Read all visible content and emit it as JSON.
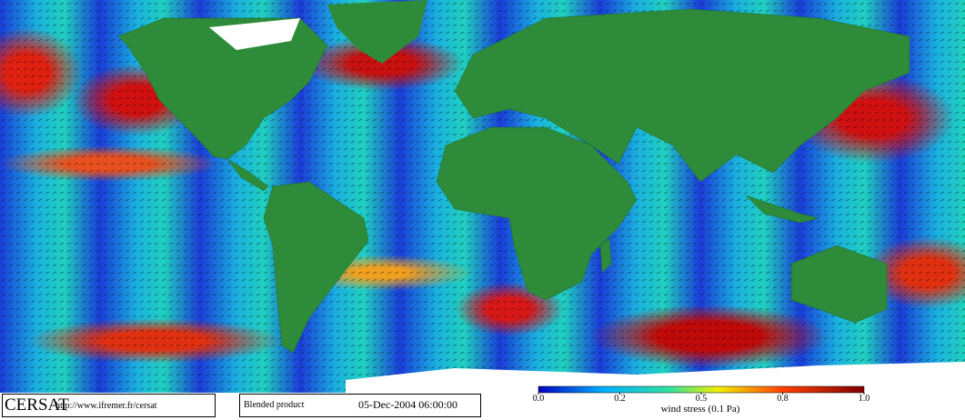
{
  "footer": {
    "logo": "CERSAT",
    "url": "http://www.ifremer.fr/cersat",
    "product": "Blended product",
    "timestamp": "05-Dec-2004 06:00:00"
  },
  "colorbar": {
    "ticks": [
      {
        "value": 0,
        "label": "0.0"
      },
      {
        "value": 0.2,
        "label": "0.2"
      },
      {
        "value": 0.5,
        "label": "0.5"
      },
      {
        "value": 0.8,
        "label": "0.8"
      },
      {
        "value": 1,
        "label": "1.0"
      }
    ],
    "label": "wind stress (0.1 Pa)"
  }
}
